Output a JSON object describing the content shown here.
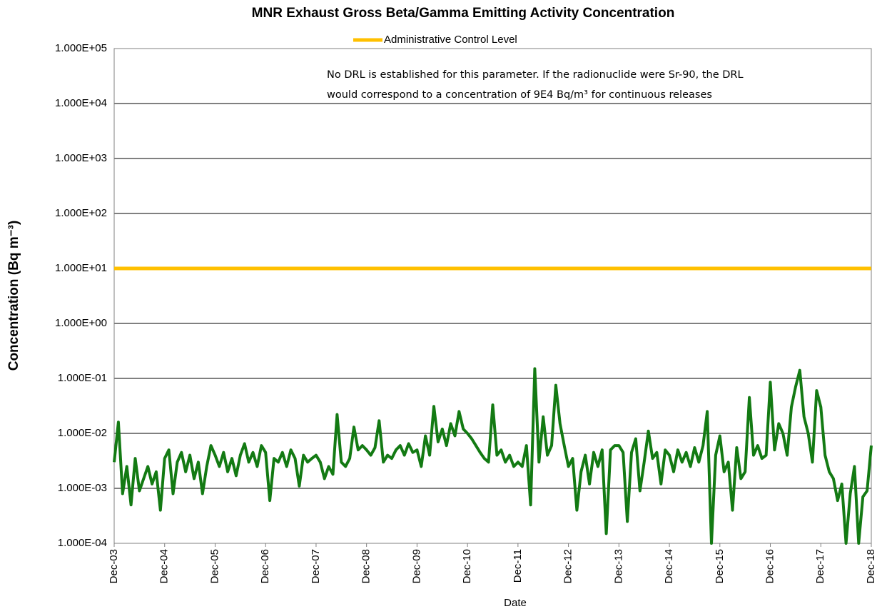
{
  "chart_data": {
    "type": "line",
    "title": "MNR Exhaust Gross Beta/Gamma Emitting Activity Concentration",
    "y_label": "Concentration (Bq m⁻³)",
    "x_label": "Date",
    "annotation": [
      "No DRL is established for this parameter.  If the radionuclide were  Sr-90, the DRL",
      "would correspond to a concentration of 9E4 Bq/m³ for continuous releases"
    ],
    "log_y": true,
    "grid": true,
    "legend": "top",
    "reference_line": {
      "name": "Administrative Control Level",
      "value": 10,
      "color": "#ffc000"
    },
    "ylim": [
      0.0001,
      100000
    ],
    "yticks": [
      {
        "value": 0.0001,
        "label": "1.000E-04"
      },
      {
        "value": 0.001,
        "label": "1.000E-03"
      },
      {
        "value": 0.01,
        "label": "1.000E-02"
      },
      {
        "value": 0.1,
        "label": "1.000E-01"
      },
      {
        "value": 1,
        "label": "1.000E+00"
      },
      {
        "value": 10,
        "label": "1.000E+01"
      },
      {
        "value": 100,
        "label": "1.000E+02"
      },
      {
        "value": 1000,
        "label": "1.000E+03"
      },
      {
        "value": 10000,
        "label": "1.000E+04"
      },
      {
        "value": 100000,
        "label": "1.000E+05"
      }
    ],
    "xticks": [
      "Dec-03",
      "Dec-04",
      "Dec-05",
      "Dec-06",
      "Dec-07",
      "Dec-08",
      "Dec-09",
      "Dec-10",
      "Dec-11",
      "Dec-12",
      "Dec-13",
      "Dec-14",
      "Dec-15",
      "Dec-16",
      "Dec-17",
      "Dec-18"
    ],
    "x": [
      "Dec-03",
      "Jan-04",
      "Feb-04",
      "Mar-04",
      "Apr-04",
      "May-04",
      "Jun-04",
      "Jul-04",
      "Aug-04",
      "Sep-04",
      "Oct-04",
      "Nov-04",
      "Dec-04",
      "Jan-05",
      "Feb-05",
      "Mar-05",
      "Apr-05",
      "May-05",
      "Jun-05",
      "Jul-05",
      "Aug-05",
      "Sep-05",
      "Oct-05",
      "Nov-05",
      "Dec-05",
      "Jan-06",
      "Feb-06",
      "Mar-06",
      "Apr-06",
      "May-06",
      "Jun-06",
      "Jul-06",
      "Aug-06",
      "Sep-06",
      "Oct-06",
      "Nov-06",
      "Dec-06",
      "Jan-07",
      "Feb-07",
      "Mar-07",
      "Apr-07",
      "May-07",
      "Jun-07",
      "Jul-07",
      "Aug-07",
      "Sep-07",
      "Oct-07",
      "Nov-07",
      "Dec-07",
      "Jan-08",
      "Feb-08",
      "Mar-08",
      "Apr-08",
      "May-08",
      "Jun-08",
      "Jul-08",
      "Aug-08",
      "Sep-08",
      "Oct-08",
      "Nov-08",
      "Dec-08",
      "Jan-09",
      "Feb-09",
      "Mar-09",
      "Apr-09",
      "May-09",
      "Jun-09",
      "Jul-09",
      "Aug-09",
      "Sep-09",
      "Oct-09",
      "Nov-09",
      "Dec-09",
      "Jan-10",
      "Feb-10",
      "Mar-10",
      "Apr-10",
      "May-10",
      "Jun-10",
      "Jul-10",
      "Aug-10",
      "Sep-10",
      "Oct-10",
      "Nov-10",
      "Dec-10",
      "Jan-11",
      "Feb-11",
      "Mar-11",
      "Apr-11",
      "May-11",
      "Jun-11",
      "Jul-11",
      "Aug-11",
      "Sep-11",
      "Oct-11",
      "Nov-11",
      "Dec-11",
      "Jan-12",
      "Feb-12",
      "Mar-12",
      "Apr-12",
      "May-12",
      "Jun-12",
      "Jul-12",
      "Aug-12",
      "Sep-12",
      "Oct-12",
      "Nov-12",
      "Dec-12",
      "Jan-13",
      "Feb-13",
      "Mar-13",
      "Apr-13",
      "May-13",
      "Jun-13",
      "Jul-13",
      "Aug-13",
      "Sep-13",
      "Oct-13",
      "Nov-13",
      "Dec-13",
      "Jan-14",
      "Feb-14",
      "Mar-14",
      "Apr-14",
      "May-14",
      "Jun-14",
      "Jul-14",
      "Aug-14",
      "Sep-14",
      "Oct-14",
      "Nov-14",
      "Dec-14",
      "Jan-15",
      "Feb-15",
      "Mar-15",
      "Apr-15",
      "May-15",
      "Jun-15",
      "Jul-15",
      "Aug-15",
      "Sep-15",
      "Oct-15",
      "Nov-15",
      "Dec-15",
      "Jan-16",
      "Feb-16",
      "Mar-16",
      "Apr-16",
      "May-16",
      "Jun-16",
      "Jul-16",
      "Aug-16",
      "Sep-16",
      "Oct-16",
      "Nov-16",
      "Dec-16",
      "Jan-17",
      "Feb-17",
      "Mar-17",
      "Apr-17",
      "May-17",
      "Jun-17",
      "Jul-17",
      "Aug-17",
      "Sep-17",
      "Oct-17",
      "Nov-17",
      "Dec-17",
      "Jan-18",
      "Feb-18",
      "Mar-18",
      "Apr-18",
      "May-18",
      "Jun-18",
      "Jul-18",
      "Aug-18",
      "Sep-18",
      "Oct-18",
      "Nov-18",
      "Dec-18"
    ],
    "series": [
      {
        "color": "#137a13",
        "values": [
          0.003,
          0.016,
          0.0008,
          0.0025,
          0.0005,
          0.0035,
          0.0009,
          0.0015,
          0.0025,
          0.0012,
          0.002,
          0.0004,
          0.0035,
          0.005,
          0.0008,
          0.003,
          0.0045,
          0.002,
          0.004,
          0.0015,
          0.003,
          0.0008,
          0.0025,
          0.006,
          0.004,
          0.0025,
          0.0045,
          0.002,
          0.0035,
          0.0017,
          0.004,
          0.0065,
          0.003,
          0.0045,
          0.0025,
          0.006,
          0.0045,
          0.0006,
          0.0035,
          0.003,
          0.0045,
          0.0025,
          0.005,
          0.0035,
          0.0011,
          0.004,
          0.003,
          0.0035,
          0.004,
          0.003,
          0.0015,
          0.0025,
          0.0018,
          0.022,
          0.003,
          0.0025,
          0.0035,
          0.013,
          0.005,
          0.006,
          0.005,
          0.004,
          0.0055,
          0.017,
          0.003,
          0.004,
          0.0035,
          0.005,
          0.006,
          0.004,
          0.0065,
          0.0045,
          0.005,
          0.0025,
          0.009,
          0.004,
          0.031,
          0.007,
          0.012,
          0.006,
          0.015,
          0.009,
          0.025,
          0.012,
          0.01,
          0.008,
          0.006,
          0.0045,
          0.0035,
          0.003,
          0.033,
          0.004,
          0.005,
          0.003,
          0.004,
          0.0025,
          0.003,
          0.0025,
          0.006,
          0.0005,
          0.15,
          0.003,
          0.02,
          0.004,
          0.006,
          0.075,
          0.015,
          0.006,
          0.0025,
          0.0035,
          0.0004,
          0.002,
          0.004,
          0.0012,
          0.0045,
          0.0025,
          0.005,
          0.00015,
          0.005,
          0.006,
          0.006,
          0.0045,
          0.00025,
          0.0045,
          0.008,
          0.0009,
          0.003,
          0.011,
          0.0035,
          0.0045,
          0.0012,
          0.005,
          0.004,
          0.002,
          0.005,
          0.003,
          0.0045,
          0.0025,
          0.0055,
          0.003,
          0.006,
          0.025,
          0.0001,
          0.004,
          0.009,
          0.002,
          0.003,
          0.0004,
          0.0055,
          0.0015,
          0.002,
          0.045,
          0.004,
          0.006,
          0.0035,
          0.004,
          0.085,
          0.005,
          0.015,
          0.01,
          0.004,
          0.03,
          0.07,
          0.14,
          0.02,
          0.01,
          0.003,
          0.06,
          0.03,
          0.004,
          0.002,
          0.0015,
          0.0006,
          0.0012,
          0.0001,
          0.0008,
          0.0025,
          0.0001,
          0.0007,
          0.0009,
          0.006
        ]
      }
    ]
  }
}
